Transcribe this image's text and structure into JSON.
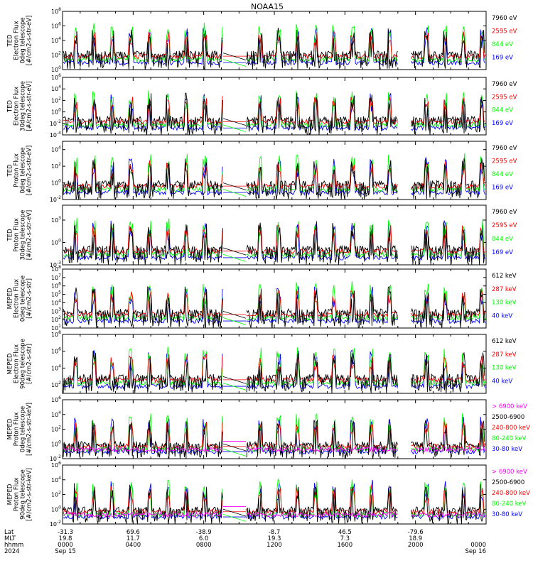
{
  "title": "NOAA15",
  "colors": {
    "black": "#000000",
    "blue": "#0000ff",
    "red": "#ff0000",
    "green": "#00ff00",
    "magenta": "#ff00ff"
  },
  "chart_data": [
    {
      "type": "line",
      "panel": 1,
      "ylabel_lines": [
        "TED",
        "Electron Flux",
        "0deg telescope",
        "[#/cm2-s-str-eV]"
      ],
      "yticks": [
        "10^0",
        "10^2",
        "10^4",
        "10^6",
        "10^8"
      ],
      "ylim_log10": [
        0,
        8
      ],
      "series": [
        {
          "name": "7960 eV",
          "color": "black"
        },
        {
          "name": "2595 eV",
          "color": "red"
        },
        {
          "name": "844 eV",
          "color": "green"
        },
        {
          "name": "169 eV",
          "color": "blue"
        }
      ]
    },
    {
      "type": "line",
      "panel": 2,
      "ylabel_lines": [
        "TED",
        "Electron Flux",
        "30deg telescope",
        "[#/cm2-s-str-eV]"
      ],
      "yticks": [
        "10^-4",
        "10^-2",
        "10^0",
        "10^2",
        "10^4",
        "10^6"
      ],
      "ylim_log10": [
        -4,
        6
      ],
      "series": [
        {
          "name": "7960 eV",
          "color": "black"
        },
        {
          "name": "2595 eV",
          "color": "red"
        },
        {
          "name": "844 eV",
          "color": "green"
        },
        {
          "name": "169 eV",
          "color": "blue"
        }
      ]
    },
    {
      "type": "line",
      "panel": 3,
      "ylabel_lines": [
        "TED",
        "Proton Flux",
        "0deg telescope",
        "[#/cm2-s-str-eV]"
      ],
      "yticks": [
        "10^-2",
        "10^0",
        "10^2",
        "10^4"
      ],
      "ylim_log10": [
        -2,
        5
      ],
      "series": [
        {
          "name": "7960 eV",
          "color": "black"
        },
        {
          "name": "2595 eV",
          "color": "red"
        },
        {
          "name": "844 eV",
          "color": "green"
        },
        {
          "name": "169 eV",
          "color": "blue"
        }
      ]
    },
    {
      "type": "line",
      "panel": 4,
      "ylabel_lines": [
        "TED",
        "Proton Flux",
        "30deg telescope",
        "[#/cm2-s-str-eV]"
      ],
      "yticks": [
        "10^-3",
        "10^0",
        "10^3"
      ],
      "ylim_log10": [
        -3,
        5
      ],
      "series": [
        {
          "name": "7960 eV",
          "color": "black"
        },
        {
          "name": "2595 eV",
          "color": "red"
        },
        {
          "name": "844 eV",
          "color": "green"
        },
        {
          "name": "169 eV",
          "color": "blue"
        }
      ]
    },
    {
      "type": "line",
      "panel": 5,
      "ylabel_lines": [
        "MEPED",
        "Electron Flux",
        "0deg telescope",
        "[#/cm2-s-str]"
      ],
      "yticks": [
        "10^1",
        "10^2",
        "10^3",
        "10^4",
        "10^5",
        "10^6",
        "10^7",
        "10^8"
      ],
      "ylim_log10": [
        1,
        8
      ],
      "series": [
        {
          "name": "612 keV",
          "color": "black"
        },
        {
          "name": "287 keV",
          "color": "red"
        },
        {
          "name": "130 keV",
          "color": "green"
        },
        {
          "name": "40 keV",
          "color": "blue"
        }
      ]
    },
    {
      "type": "line",
      "panel": 6,
      "ylabel_lines": [
        "MEPED",
        "Electron Flux",
        "90deg telescope",
        "[#/cm2-s-str]"
      ],
      "yticks": [
        "10^2",
        "10^4",
        "10^6",
        "10^8"
      ],
      "ylim_log10": [
        1,
        8
      ],
      "series": [
        {
          "name": "612 keV",
          "color": "black"
        },
        {
          "name": "287 keV",
          "color": "red"
        },
        {
          "name": "130 keV",
          "color": "green"
        },
        {
          "name": "40 keV",
          "color": "blue"
        }
      ]
    },
    {
      "type": "line",
      "panel": 7,
      "ylabel_lines": [
        "MEPED",
        "Proton Flux",
        "0deg telescope",
        "[#/cm2-s-str-keV]"
      ],
      "yticks": [
        "10^-2",
        "10^0",
        "10^2",
        "10^4",
        "10^6"
      ],
      "ylim_log10": [
        -2,
        6
      ],
      "series": [
        {
          "name": "> 6900 keV",
          "color": "magenta"
        },
        {
          "name": "2500-6900",
          "color": "black"
        },
        {
          "name": "240-800 keV",
          "color": "red"
        },
        {
          "name": "80-240 keV",
          "color": "green"
        },
        {
          "name": "30-80 keV",
          "color": "blue"
        }
      ]
    },
    {
      "type": "line",
      "panel": 8,
      "ylabel_lines": [
        "MEPED",
        "Proton Flux",
        "90deg telescope",
        "[#/cm2-s-str-keV]"
      ],
      "yticks": [
        "10^-2",
        "10^0",
        "10^2",
        "10^4",
        "10^6"
      ],
      "ylim_log10": [
        -2,
        6
      ],
      "series": [
        {
          "name": "> 6900 keV",
          "color": "magenta"
        },
        {
          "name": "2500-6900",
          "color": "black"
        },
        {
          "name": "240-800 keV",
          "color": "red"
        },
        {
          "name": "80-240 keV",
          "color": "green"
        },
        {
          "name": "30-80 keV",
          "color": "blue"
        }
      ]
    }
  ],
  "xaxis": {
    "row_labels": [
      "Lat",
      "MLT",
      "hhmm",
      "2024"
    ],
    "ticks": [
      {
        "lat": "-31.3",
        "mlt": "19.8",
        "hhmm": "0000",
        "date": "Sep 15"
      },
      {
        "lat": "69.6",
        "mlt": "11.7",
        "hhmm": "0400",
        "date": ""
      },
      {
        "lat": "-38.9",
        "mlt": "6.0",
        "hhmm": "0800",
        "date": ""
      },
      {
        "lat": "-8.7",
        "mlt": "19.3",
        "hhmm": "1200",
        "date": ""
      },
      {
        "lat": "46.5",
        "mlt": "7.3",
        "hhmm": "1600",
        "date": ""
      },
      {
        "lat": "-79.6",
        "mlt": "18.9",
        "hhmm": "2000",
        "date": ""
      },
      {
        "lat": "",
        "mlt": "",
        "hhmm": "0000",
        "date": "Sep 16"
      }
    ]
  }
}
